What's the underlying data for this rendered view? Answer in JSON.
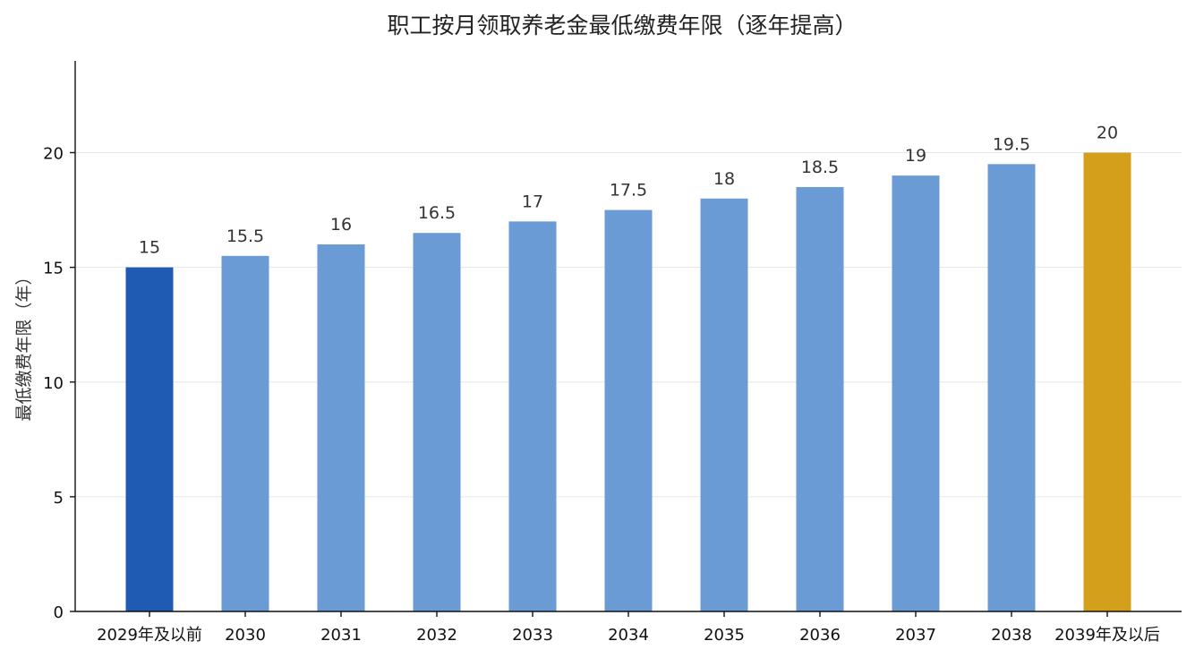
{
  "chart_data": {
    "type": "bar",
    "title": "职工按月领取养老金最低缴费年限（逐年提高）",
    "xlabel": "",
    "ylabel": "最低缴费年限（年）",
    "categories": [
      "2029年及以前",
      "2030",
      "2031",
      "2032",
      "2033",
      "2034",
      "2035",
      "2036",
      "2037",
      "2038",
      "2039年及以后"
    ],
    "values": [
      15,
      15.5,
      16,
      16.5,
      17,
      17.5,
      18,
      18.5,
      19,
      19.5,
      20
    ],
    "value_labels": [
      "15",
      "15.5",
      "16",
      "16.5",
      "17",
      "17.5",
      "18",
      "18.5",
      "19",
      "19.5",
      "20"
    ],
    "bar_colors": [
      "#1f5bb3",
      "#6b9bd4",
      "#6b9bd4",
      "#6b9bd4",
      "#6b9bd4",
      "#6b9bd4",
      "#6b9bd4",
      "#6b9bd4",
      "#6b9bd4",
      "#6b9bd4",
      "#d4a01c"
    ],
    "ylim": [
      0,
      24
    ],
    "yticks": [
      0,
      5,
      10,
      15,
      20
    ],
    "grid": true,
    "legend": "none"
  }
}
